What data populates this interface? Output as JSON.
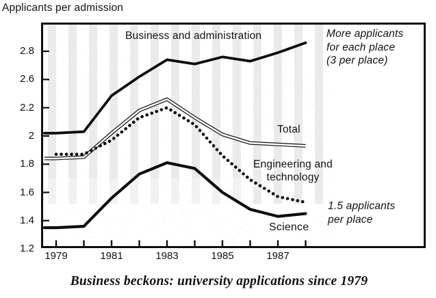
{
  "title": "Applicants per admission",
  "caption": "Business beckons: university applications since 1979",
  "series_labels": {
    "business": "Business and administration",
    "total": "Total",
    "engineering_line1": "Engineering and",
    "engineering_line2": "technology",
    "science": "Science"
  },
  "annotations": {
    "top_right": [
      "More applicants",
      "for each place",
      "(3 per place)"
    ],
    "bottom_right": [
      "1.5 applicants",
      "per place"
    ]
  },
  "axes": {
    "y_labels_as_printed": [
      "2.8",
      "2.6",
      "2.2",
      "2",
      "1.8",
      "1.6",
      "1.4",
      "1.2"
    ],
    "x_tick_years": [
      1979,
      1980,
      1981,
      1982,
      1983,
      1984,
      1985,
      1986,
      1987,
      1988
    ],
    "x_labels": [
      "1979",
      "1981",
      "1983",
      "1985",
      "1987"
    ]
  },
  "colors": {
    "ink": "#0d0d0d",
    "background": "#ffffff"
  },
  "chart_data": {
    "type": "line",
    "title": "Applicants per admission",
    "ylabel": "Applicants per admission",
    "xlabel": "",
    "grid": false,
    "legend_position": "labels-on-lines",
    "x": [
      1979,
      1980,
      1981,
      1982,
      1983,
      1984,
      1985,
      1986,
      1987,
      1988
    ],
    "y_tick_labels_as_printed": [
      2.8,
      2.6,
      2.2,
      2,
      1.8,
      1.6,
      1.4,
      1.2
    ],
    "ylim_as_printed": [
      1.2,
      2.9
    ],
    "series": [
      {
        "name": "Business and administration",
        "line_style": "bold",
        "values": [
          2.02,
          2.03,
          2.37,
          2.62,
          2.74,
          2.71,
          2.76,
          2.73,
          2.79,
          2.86
        ]
      },
      {
        "name": "Total",
        "line_style": "double",
        "values": [
          1.84,
          1.85,
          2.02,
          2.18,
          2.32,
          2.13,
          2.01,
          1.95,
          1.94,
          1.93
        ]
      },
      {
        "name": "Engineering and technology",
        "line_style": "dotted",
        "values": [
          1.87,
          1.87,
          1.97,
          2.13,
          2.2,
          2.08,
          1.86,
          1.69,
          1.57,
          1.53
        ]
      },
      {
        "name": "Science",
        "line_style": "bold",
        "values": [
          1.35,
          1.36,
          1.56,
          1.73,
          1.81,
          1.77,
          1.6,
          1.48,
          1.43,
          1.45
        ]
      }
    ],
    "annotations": [
      "More applicants for each place (3 per place)",
      "1.5 applicants per place"
    ]
  }
}
